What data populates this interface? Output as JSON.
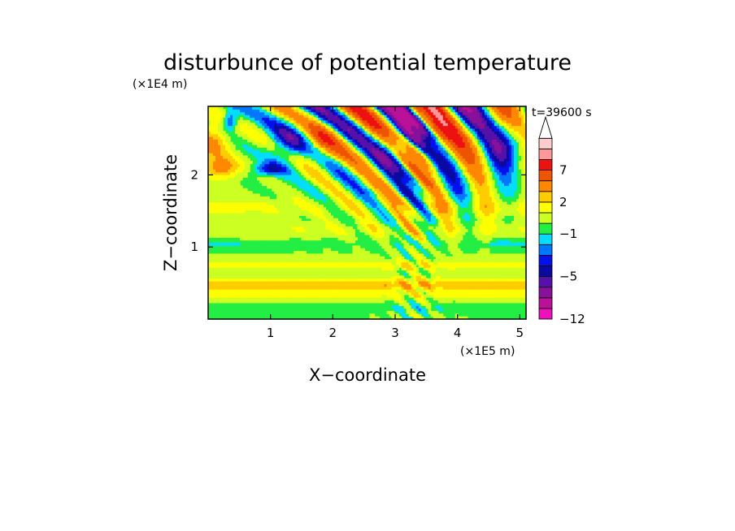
{
  "chart_data": {
    "type": "heatmap",
    "title": "disturbunce of potential temperature",
    "xlabel": "X−coordinate",
    "ylabel": "Z−coordinate",
    "x_scale_label": "(×1E5 m)",
    "y_scale_label": "(×1E4 m)",
    "time_label": "t=39600 s",
    "xlim": [
      0,
      5.1
    ],
    "ylim": [
      0,
      2.95
    ],
    "x_ticks": [
      {
        "value": 1,
        "label": "1"
      },
      {
        "value": 2,
        "label": "2"
      },
      {
        "value": 3,
        "label": "3"
      },
      {
        "value": 4,
        "label": "4"
      },
      {
        "value": 5,
        "label": "5"
      }
    ],
    "y_ticks": [
      {
        "value": 1,
        "label": "1"
      },
      {
        "value": 2,
        "label": "2"
      }
    ],
    "colorbar": {
      "levels": [
        -12,
        -10,
        -8,
        -6,
        -5,
        -4,
        -3,
        -2,
        -1,
        0,
        1,
        2,
        3,
        5,
        7,
        9,
        11
      ],
      "colors": [
        "#ee11bb",
        "#bb1199",
        "#881199",
        "#5511aa",
        "#0a0aa0",
        "#0011ee",
        "#0077ff",
        "#00ddff",
        "#22ee44",
        "#ccff22",
        "#ffff00",
        "#ffcc00",
        "#ff8800",
        "#ee5500",
        "#ee1111",
        "#ff9999",
        "#ffcccc"
      ],
      "labels": [
        {
          "value": -12,
          "label": "−12"
        },
        {
          "value": -5,
          "label": "−5"
        },
        {
          "value": -1,
          "label": "−1"
        },
        {
          "value": 2,
          "label": "2"
        },
        {
          "value": 7,
          "label": "7"
        }
      ],
      "extend": "max"
    },
    "background_color": "#22ee44"
  }
}
